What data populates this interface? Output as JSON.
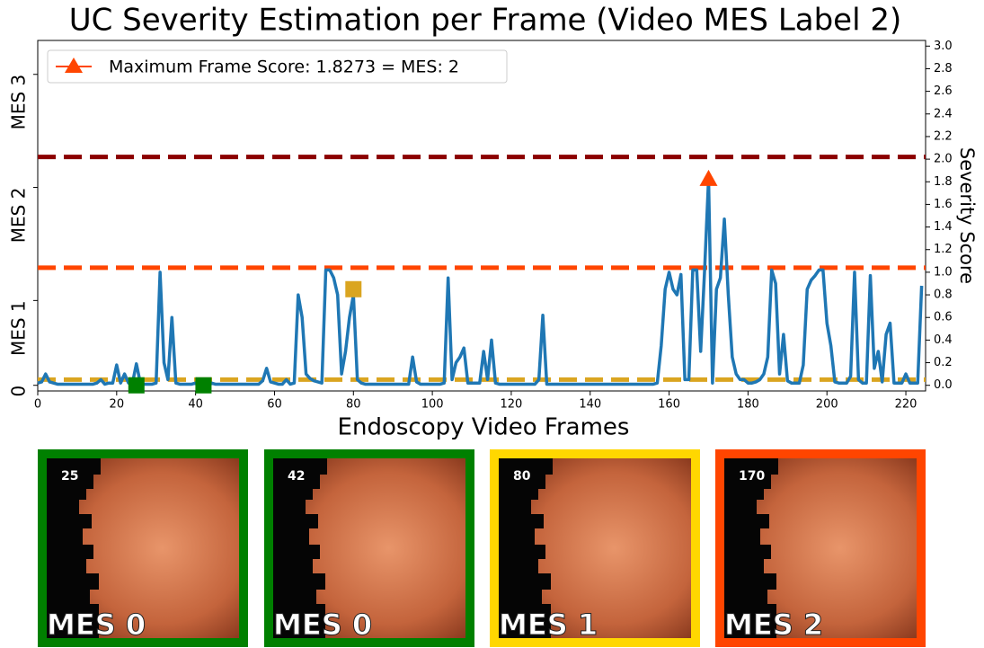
{
  "chart_data": {
    "type": "line",
    "title": "UC Severity Estimation per Frame (Video MES Label 2)",
    "x_label": "Endoscopy Video Frames",
    "y2_label": "Severity Score",
    "xlim": [
      0,
      225
    ],
    "ylim": [
      -0.05,
      3.05
    ],
    "xticks": [
      0,
      20,
      40,
      60,
      80,
      100,
      120,
      140,
      160,
      180,
      200,
      220
    ],
    "yticks": [
      0,
      {
        "value": 0.75,
        "label": "MES 1"
      },
      {
        "value": 1.75,
        "label": "MES 2"
      },
      {
        "value": 2.75,
        "label": "MES 3"
      }
    ],
    "y2lim": [
      -0.05,
      3.05
    ],
    "y2ticks": [
      {
        "value": 0,
        "label": "0.0"
      },
      {
        "value": 0.2,
        "label": "0.2"
      },
      {
        "value": 0.4,
        "label": "0.4"
      },
      {
        "value": 0.6,
        "label": "0.6"
      },
      {
        "value": 0.8,
        "label": "0.8"
      },
      {
        "value": 1.0,
        "label": "1.0"
      },
      {
        "value": 1.2,
        "label": "1.2"
      },
      {
        "value": 1.4,
        "label": "1.4"
      },
      {
        "value": 1.6,
        "label": "1.6"
      },
      {
        "value": 1.8,
        "label": "1.8"
      },
      {
        "value": 2.0,
        "label": "2.0"
      },
      {
        "value": 2.2,
        "label": "2.2"
      },
      {
        "value": 2.4,
        "label": "2.4"
      },
      {
        "value": 2.6,
        "label": "2.6"
      },
      {
        "value": 2.8,
        "label": "2.8"
      },
      {
        "value": 3.0,
        "label": "3.0"
      }
    ],
    "x": [
      0,
      1,
      2,
      3,
      4,
      5,
      6,
      7,
      8,
      9,
      10,
      11,
      12,
      13,
      14,
      15,
      16,
      17,
      18,
      19,
      20,
      21,
      22,
      23,
      24,
      25,
      26,
      27,
      28,
      29,
      30,
      31,
      32,
      33,
      34,
      35,
      36,
      37,
      38,
      39,
      40,
      41,
      42,
      43,
      44,
      45,
      46,
      47,
      48,
      49,
      50,
      51,
      52,
      53,
      54,
      55,
      56,
      57,
      58,
      59,
      60,
      61,
      62,
      63,
      64,
      65,
      66,
      67,
      68,
      69,
      70,
      71,
      72,
      73,
      74,
      75,
      76,
      77,
      78,
      79,
      80,
      81,
      82,
      83,
      84,
      85,
      86,
      87,
      88,
      89,
      90,
      91,
      92,
      93,
      94,
      95,
      96,
      97,
      98,
      99,
      100,
      101,
      102,
      103,
      104,
      105,
      106,
      107,
      108,
      109,
      110,
      111,
      112,
      113,
      114,
      115,
      116,
      117,
      118,
      119,
      120,
      121,
      122,
      123,
      124,
      125,
      126,
      127,
      128,
      129,
      130,
      131,
      132,
      133,
      134,
      135,
      136,
      137,
      138,
      139,
      140,
      141,
      142,
      143,
      144,
      145,
      146,
      147,
      148,
      149,
      150,
      151,
      152,
      153,
      154,
      155,
      156,
      157,
      158,
      159,
      160,
      161,
      162,
      163,
      164,
      165,
      166,
      167,
      168,
      169,
      170,
      171,
      172,
      173,
      174,
      175,
      176,
      177,
      178,
      179,
      180,
      181,
      182,
      183,
      184,
      185,
      186,
      187,
      188,
      189,
      190,
      191,
      192,
      193,
      194,
      195,
      196,
      197,
      198,
      199,
      200,
      201,
      202,
      203,
      204,
      205,
      206,
      207,
      208,
      209,
      210,
      211,
      212,
      213,
      214,
      215,
      216,
      217,
      218,
      219,
      220,
      221,
      222,
      223,
      224
    ],
    "series": [
      {
        "color": "#1f77b4",
        "values": [
          0.02,
          0.03,
          0.1,
          0.03,
          0.02,
          0.01,
          0.01,
          0.01,
          0.01,
          0.01,
          0.01,
          0.01,
          0.01,
          0.01,
          0.01,
          0.02,
          0.05,
          0.01,
          0.02,
          0.02,
          0.18,
          0.02,
          0.1,
          0.02,
          0.02,
          0.19,
          0.02,
          0.01,
          0.01,
          0.01,
          0.02,
          1.0,
          0.2,
          0.05,
          0.6,
          0.02,
          0.01,
          0.01,
          0.01,
          0.01,
          0.02,
          0.01,
          0.01,
          0.01,
          0.02,
          0.01,
          0.01,
          0.01,
          0.01,
          0.01,
          0.01,
          0.01,
          0.01,
          0.01,
          0.01,
          0.01,
          0.01,
          0.04,
          0.15,
          0.03,
          0.02,
          0.01,
          0.01,
          0.05,
          0.01,
          0.02,
          0.8,
          0.6,
          0.1,
          0.06,
          0.04,
          0.03,
          0.02,
          1.02,
          1.02,
          0.95,
          0.8,
          0.1,
          0.3,
          0.6,
          0.8,
          0.05,
          0.02,
          0.01,
          0.01,
          0.01,
          0.01,
          0.01,
          0.01,
          0.01,
          0.01,
          0.01,
          0.01,
          0.01,
          0.01,
          0.25,
          0.03,
          0.01,
          0.01,
          0.01,
          0.01,
          0.01,
          0.01,
          0.02,
          0.95,
          0.05,
          0.2,
          0.25,
          0.33,
          0.02,
          0.02,
          0.02,
          0.02,
          0.3,
          0.05,
          0.4,
          0.02,
          0.01,
          0.01,
          0.01,
          0.01,
          0.01,
          0.01,
          0.01,
          0.01,
          0.01,
          0.01,
          0.05,
          0.62,
          0.01,
          0.01,
          0.01,
          0.01,
          0.01,
          0.01,
          0.01,
          0.01,
          0.01,
          0.01,
          0.01,
          0.01,
          0.01,
          0.01,
          0.01,
          0.01,
          0.01,
          0.01,
          0.01,
          0.01,
          0.01,
          0.01,
          0.01,
          0.01,
          0.01,
          0.01,
          0.01,
          0.01,
          0.02,
          0.35,
          0.85,
          1.0,
          0.85,
          0.8,
          0.98,
          0.05,
          0.05,
          1.02,
          1.02,
          0.3,
          1.02,
          1.8273,
          0.02,
          0.85,
          0.95,
          1.47,
          0.8,
          0.25,
          0.1,
          0.05,
          0.05,
          0.02,
          0.02,
          0.03,
          0.05,
          0.1,
          0.25,
          1.02,
          0.9,
          0.1,
          0.45,
          0.04,
          0.02,
          0.02,
          0.02,
          0.18,
          0.85,
          0.93,
          0.97,
          1.02,
          1.02,
          0.55,
          0.35,
          0.03,
          0.02,
          0.02,
          0.02,
          0.08,
          1.0,
          0.05,
          0.02,
          0.02,
          0.97,
          0.15,
          0.3,
          0.03,
          0.45,
          0.55,
          0.02,
          0.02,
          0.02,
          0.1,
          0.02,
          0.02,
          0.02,
          0.88
        ]
      }
    ],
    "thresholds": [
      {
        "value": 2.02,
        "color": "#8b0000"
      },
      {
        "value": 1.04,
        "color": "#ff4500"
      },
      {
        "value": 0.05,
        "color": "#daa520"
      }
    ],
    "max_marker": {
      "name": "Maximum Frame Score: 1.8273 = MES: 2",
      "x": 170,
      "value": 1.8273,
      "color": "#ff4500"
    },
    "frame_markers": [
      {
        "x": 25,
        "value": 0.0,
        "color": "#008000"
      },
      {
        "x": 42,
        "value": 0.0,
        "color": "#008000"
      },
      {
        "x": 80,
        "value": 0.85,
        "color": "#daa520"
      }
    ],
    "thumbnails": [
      {
        "frame": 25,
        "label": "MES 0",
        "color": "#008000"
      },
      {
        "frame": 42,
        "label": "MES 0",
        "color": "#008000"
      },
      {
        "frame": 80,
        "label": "MES 1",
        "color": "#ffd700"
      },
      {
        "frame": 170,
        "label": "MES 2",
        "color": "#ff4500"
      }
    ]
  }
}
